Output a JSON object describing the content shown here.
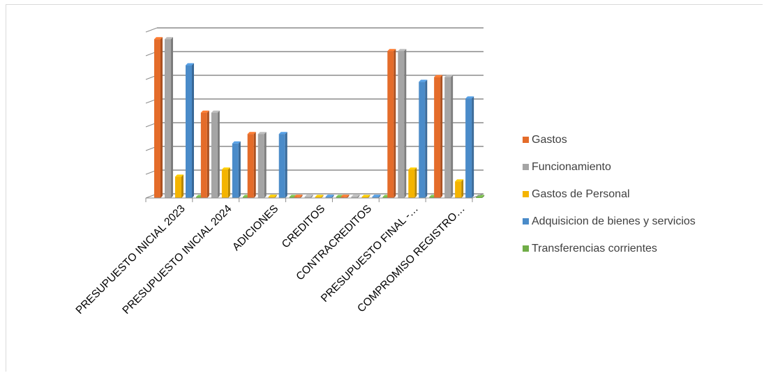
{
  "chart_data": {
    "type": "bar",
    "title": "",
    "xlabel": "",
    "ylabel": "",
    "ylim": [
      0,
      7
    ],
    "grid": true,
    "legend_position": "right",
    "categories": [
      "PRESUPUESTO INICIAL 2023",
      "PRESUPUESTO INICIAL 2024",
      "ADICIONES",
      "CREDITOS",
      "CONTRACREDITOS",
      "PRESUPUESTO FINAL -…",
      "COMPROMISO REGISTRO…"
    ],
    "series": [
      {
        "name": "Gastos",
        "color": "#E46C2A",
        "values": [
          6.7,
          3.6,
          2.7,
          0.05,
          0.05,
          6.2,
          5.1
        ]
      },
      {
        "name": "Funcionamiento",
        "color": "#A5A5A5",
        "values": [
          6.7,
          3.6,
          2.7,
          0.05,
          0.05,
          6.2,
          5.1
        ]
      },
      {
        "name": "Gastos de Personal",
        "color": "#F4B400",
        "values": [
          0.9,
          1.2,
          0.05,
          0.0,
          0.0,
          1.2,
          0.7
        ]
      },
      {
        "name": "Adquisicion de bienes y servicios",
        "color": "#4A8BC9",
        "values": [
          5.6,
          2.3,
          2.7,
          0.05,
          0.05,
          4.9,
          4.2
        ]
      },
      {
        "name": "Transferencias corrientes",
        "color": "#70AD47",
        "values": [
          0.02,
          0.02,
          0.02,
          0.0,
          0.0,
          0.02,
          0.02
        ]
      }
    ]
  }
}
